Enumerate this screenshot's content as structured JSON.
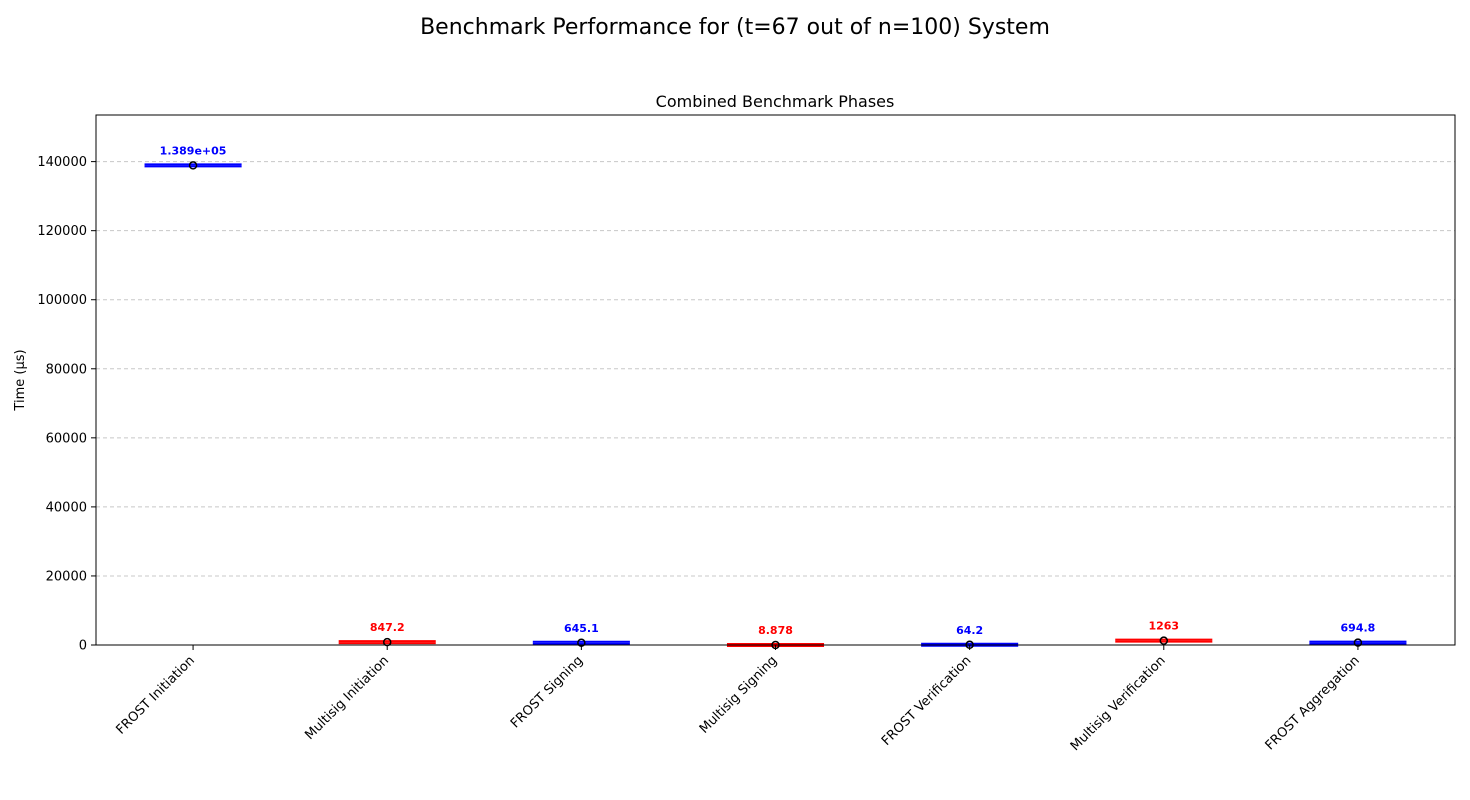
{
  "figure": {
    "suptitle": "Benchmark Performance for (t=67 out of n=100) System"
  },
  "chart_data": {
    "type": "box",
    "title": "Combined Benchmark Phases",
    "xlabel": "",
    "ylabel": "Time (µs)",
    "ylim": [
      0,
      153500
    ],
    "yticks": [
      0,
      20000,
      40000,
      60000,
      80000,
      100000,
      120000,
      140000
    ],
    "ytick_labels": [
      "0",
      "20000",
      "40000",
      "60000",
      "80000",
      "100000",
      "120000",
      "140000"
    ],
    "grid": "y-dashed",
    "categories": [
      "FROST Initiation",
      "Multisig Initiation",
      "FROST Signing",
      "Multisig Signing",
      "FROST Verification",
      "Multisig Verification",
      "FROST Aggregation"
    ],
    "values": [
      138900,
      847.2,
      645.1,
      8.878,
      64.2,
      1263,
      694.8
    ],
    "value_labels": [
      "1.389e+05",
      "847.2",
      "645.1",
      "8.878",
      "64.2",
      "1263",
      "694.8"
    ],
    "colors": [
      "#0000ff",
      "#ff0000",
      "#0000ff",
      "#ff0000",
      "#0000ff",
      "#ff0000",
      "#0000ff"
    ]
  }
}
